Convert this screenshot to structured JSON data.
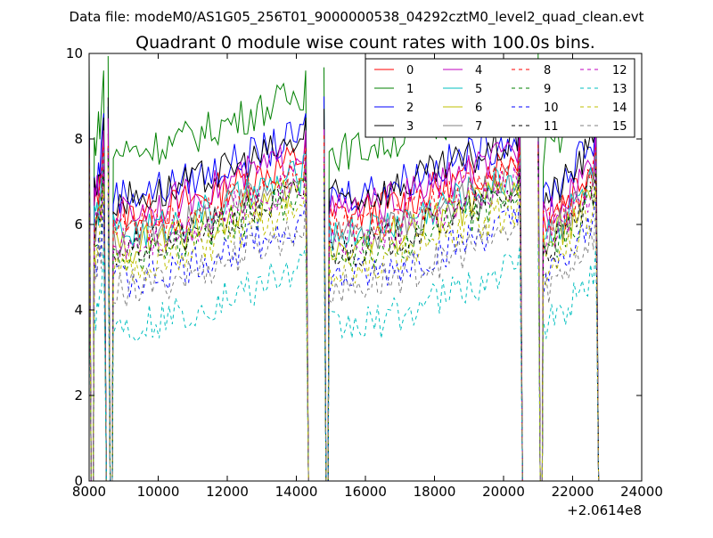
{
  "suptitle": "Data file: modeM0/AS1G05_256T01_9000000538_04292cztM0_level2_quad_clean.evt",
  "chart_data": {
    "type": "line",
    "title": "Quadrant 0 module wise count rates with 100.0s bins.",
    "xlabel": "",
    "ylabel": "",
    "xlim": [
      8000,
      24000
    ],
    "ylim": [
      0,
      10
    ],
    "x_ticks": [
      8000,
      10000,
      12000,
      14000,
      16000,
      18000,
      20000,
      22000,
      24000
    ],
    "x_tick_labels": [
      "8000",
      "10000",
      "12000",
      "14000",
      "16000",
      "18000",
      "20000",
      "22000",
      "24000"
    ],
    "y_ticks": [
      0,
      2,
      4,
      6,
      8,
      10
    ],
    "y_tick_labels": [
      "0",
      "2",
      "4",
      "6",
      "8",
      "10"
    ],
    "x_offset_label": "+2.0614e8",
    "grid": false,
    "legend_position": "top-right",
    "legend_columns": 4,
    "segments": [
      [
        8000,
        8500
      ],
      [
        8550,
        14350
      ],
      [
        14800,
        20550
      ],
      [
        21000,
        22750
      ]
    ],
    "series": [
      {
        "name": "0",
        "color": "#ff0000",
        "style": "solid",
        "level": 6.9
      },
      {
        "name": "1",
        "color": "#008000",
        "style": "solid",
        "level": 8.4
      },
      {
        "name": "2",
        "color": "#0000ff",
        "style": "solid",
        "level": 7.4
      },
      {
        "name": "3",
        "color": "#000000",
        "style": "solid",
        "level": 7.3
      },
      {
        "name": "4",
        "color": "#bf00bf",
        "style": "solid",
        "level": 7.0
      },
      {
        "name": "5",
        "color": "#00bfbf",
        "style": "solid",
        "level": 6.5
      },
      {
        "name": "6",
        "color": "#bfbf00",
        "style": "solid",
        "level": 6.2
      },
      {
        "name": "7",
        "color": "#808080",
        "style": "solid",
        "level": 6.4
      },
      {
        "name": "8",
        "color": "#ff0000",
        "style": "dashed",
        "level": 6.6
      },
      {
        "name": "9",
        "color": "#008000",
        "style": "dashed",
        "level": 6.0
      },
      {
        "name": "10",
        "color": "#0000ff",
        "style": "dashed",
        "level": 5.4
      },
      {
        "name": "11",
        "color": "#000000",
        "style": "dashed",
        "level": 6.1
      },
      {
        "name": "12",
        "color": "#bf00bf",
        "style": "dashed",
        "level": 6.3
      },
      {
        "name": "13",
        "color": "#00bfbf",
        "style": "dashed",
        "level": 4.3
      },
      {
        "name": "14",
        "color": "#bfbf00",
        "style": "dashed",
        "level": 5.7
      },
      {
        "name": "15",
        "color": "#808080",
        "style": "dashed",
        "level": 5.2
      }
    ]
  }
}
